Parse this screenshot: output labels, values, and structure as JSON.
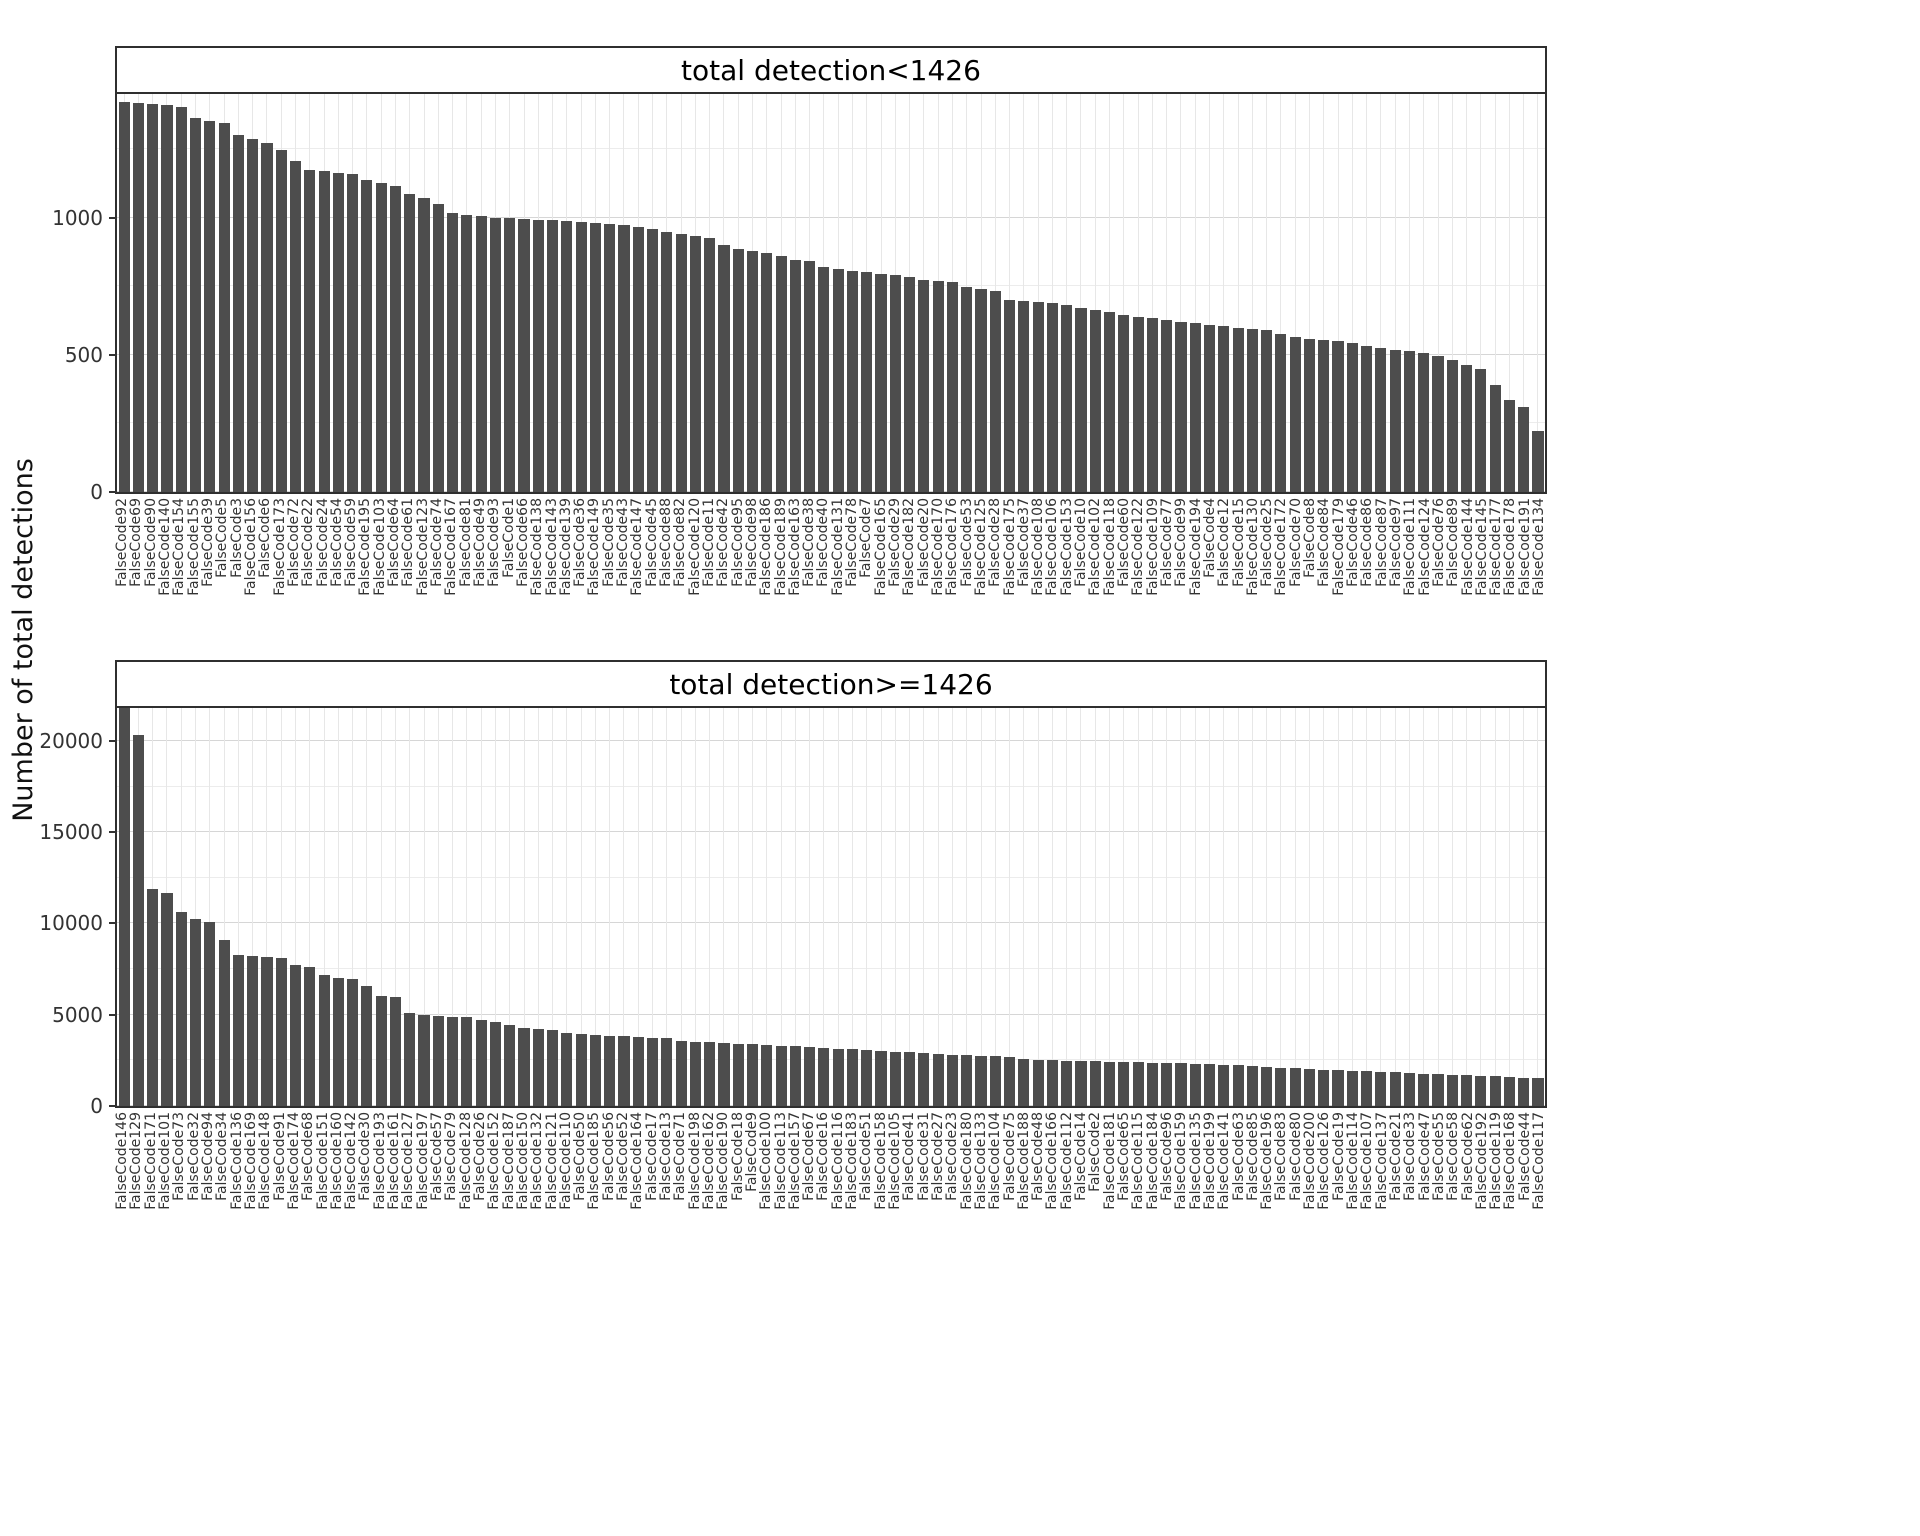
{
  "figure": {
    "y_axis_label": "Number of total detections",
    "background": "#ffffff",
    "bar_color": "#4d4d4d",
    "major_gridline_color": "#d6d6d6",
    "minor_gridline_color": "#ececec",
    "axis_text_color": "#333333"
  },
  "chart_data": [
    {
      "type": "bar",
      "title": "total detection<1426",
      "xlabel": "",
      "ylabel": "Number of total detections",
      "ylim": [
        0,
        1450
      ],
      "yticks": [
        0,
        500,
        1000
      ],
      "minor_yticks": [
        250,
        750,
        1250
      ],
      "legend": "none",
      "grid": "on",
      "categories": [
        "FalseCode92",
        "FalseCode69",
        "FalseCode90",
        "FalseCode140",
        "FalseCode154",
        "FalseCode155",
        "FalseCode39",
        "FalseCode5",
        "FalseCode3",
        "FalseCode156",
        "FalseCode6",
        "FalseCode173",
        "FalseCode72",
        "FalseCode22",
        "FalseCode24",
        "FalseCode54",
        "FalseCode59",
        "FalseCode195",
        "FalseCode103",
        "FalseCode64",
        "FalseCode61",
        "FalseCode123",
        "FalseCode74",
        "FalseCode167",
        "FalseCode81",
        "FalseCode49",
        "FalseCode93",
        "FalseCode1",
        "FalseCode66",
        "FalseCode138",
        "FalseCode143",
        "FalseCode139",
        "FalseCode36",
        "FalseCode149",
        "FalseCode35",
        "FalseCode43",
        "FalseCode147",
        "FalseCode45",
        "FalseCode88",
        "FalseCode82",
        "FalseCode120",
        "FalseCode11",
        "FalseCode42",
        "FalseCode95",
        "FalseCode98",
        "FalseCode186",
        "FalseCode189",
        "FalseCode163",
        "FalseCode38",
        "FalseCode40",
        "FalseCode131",
        "FalseCode78",
        "FalseCode7",
        "FalseCode165",
        "FalseCode29",
        "FalseCode182",
        "FalseCode20",
        "FalseCode170",
        "FalseCode176",
        "FalseCode53",
        "FalseCode125",
        "FalseCode28",
        "FalseCode175",
        "FalseCode37",
        "FalseCode108",
        "FalseCode106",
        "FalseCode153",
        "FalseCode10",
        "FalseCode102",
        "FalseCode118",
        "FalseCode60",
        "FalseCode122",
        "FalseCode109",
        "FalseCode77",
        "FalseCode99",
        "FalseCode194",
        "FalseCode4",
        "FalseCode12",
        "FalseCode15",
        "FalseCode130",
        "FalseCode25",
        "FalseCode172",
        "FalseCode70",
        "FalseCode8",
        "FalseCode84",
        "FalseCode179",
        "FalseCode46",
        "FalseCode86",
        "FalseCode87",
        "FalseCode97",
        "FalseCode111",
        "FalseCode124",
        "FalseCode76",
        "FalseCode89",
        "FalseCode144",
        "FalseCode145",
        "FalseCode177",
        "FalseCode178",
        "FalseCode191",
        "FalseCode134"
      ],
      "values": [
        1421,
        1418,
        1413,
        1409,
        1404,
        1362,
        1351,
        1344,
        1301,
        1286,
        1271,
        1246,
        1206,
        1172,
        1168,
        1164,
        1158,
        1136,
        1127,
        1114,
        1086,
        1071,
        1051,
        1016,
        1008,
        1004,
        1000,
        997,
        995,
        992,
        990,
        987,
        984,
        981,
        977,
        971,
        964,
        957,
        949,
        941,
        934,
        927,
        901,
        887,
        877,
        871,
        861,
        847,
        841,
        821,
        811,
        806,
        800,
        795,
        789,
        784,
        774,
        769,
        764,
        747,
        741,
        731,
        701,
        696,
        693,
        689,
        681,
        671,
        664,
        655,
        645,
        639,
        634,
        625,
        619,
        614,
        609,
        604,
        599,
        594,
        589,
        575,
        565,
        559,
        554,
        549,
        544,
        531,
        525,
        519,
        514,
        505,
        497,
        482,
        461,
        447,
        391,
        334,
        311,
        224
      ]
    },
    {
      "type": "bar",
      "title": "total detection>=1426",
      "xlabel": "",
      "ylabel": "Number of total detections",
      "ylim": [
        0,
        21800
      ],
      "yticks": [
        0,
        5000,
        10000,
        15000,
        20000
      ],
      "minor_yticks": [
        2500,
        7500,
        12500,
        17500
      ],
      "legend": "none",
      "grid": "on",
      "categories": [
        "FalseCode146",
        "FalseCode129",
        "FalseCode171",
        "FalseCode101",
        "FalseCode73",
        "FalseCode32",
        "FalseCode94",
        "FalseCode34",
        "FalseCode136",
        "FalseCode169",
        "FalseCode148",
        "FalseCode91",
        "FalseCode174",
        "FalseCode68",
        "FalseCode151",
        "FalseCode160",
        "FalseCode142",
        "FalseCode30",
        "FalseCode193",
        "FalseCode161",
        "FalseCode127",
        "FalseCode197",
        "FalseCode57",
        "FalseCode79",
        "FalseCode128",
        "FalseCode26",
        "FalseCode152",
        "FalseCode187",
        "FalseCode150",
        "FalseCode132",
        "FalseCode121",
        "FalseCode110",
        "FalseCode50",
        "FalseCode185",
        "FalseCode56",
        "FalseCode52",
        "FalseCode164",
        "FalseCode17",
        "FalseCode13",
        "FalseCode71",
        "FalseCode198",
        "FalseCode162",
        "FalseCode190",
        "FalseCode18",
        "FalseCode9",
        "FalseCode100",
        "FalseCode113",
        "FalseCode157",
        "FalseCode67",
        "FalseCode16",
        "FalseCode116",
        "FalseCode183",
        "FalseCode51",
        "FalseCode158",
        "FalseCode105",
        "FalseCode41",
        "FalseCode31",
        "FalseCode27",
        "FalseCode23",
        "FalseCode180",
        "FalseCode133",
        "FalseCode104",
        "FalseCode75",
        "FalseCode188",
        "FalseCode48",
        "FalseCode166",
        "FalseCode112",
        "FalseCode14",
        "FalseCode2",
        "FalseCode181",
        "FalseCode65",
        "FalseCode115",
        "FalseCode184",
        "FalseCode96",
        "FalseCode159",
        "FalseCode135",
        "FalseCode199",
        "FalseCode141",
        "FalseCode63",
        "FalseCode85",
        "FalseCode196",
        "FalseCode83",
        "FalseCode80",
        "FalseCode200",
        "FalseCode126",
        "FalseCode19",
        "FalseCode114",
        "FalseCode107",
        "FalseCode137",
        "FalseCode21",
        "FalseCode33",
        "FalseCode47",
        "FalseCode55",
        "FalseCode58",
        "FalseCode62",
        "FalseCode192",
        "FalseCode119",
        "FalseCode168",
        "FalseCode44",
        "FalseCode117"
      ],
      "values": [
        21800,
        20300,
        11900,
        11650,
        10600,
        10250,
        10100,
        9100,
        8250,
        8200,
        8150,
        8100,
        7700,
        7600,
        7150,
        7000,
        6950,
        6600,
        6050,
        5950,
        5100,
        4980,
        4950,
        4900,
        4850,
        4700,
        4600,
        4450,
        4300,
        4200,
        4150,
        3980,
        3940,
        3900,
        3860,
        3820,
        3780,
        3740,
        3700,
        3560,
        3520,
        3480,
        3440,
        3400,
        3380,
        3340,
        3300,
        3260,
        3220,
        3180,
        3150,
        3100,
        3060,
        3020,
        2980,
        2940,
        2900,
        2860,
        2820,
        2780,
        2750,
        2720,
        2680,
        2560,
        2520,
        2500,
        2480,
        2460,
        2440,
        2420,
        2400,
        2390,
        2380,
        2360,
        2340,
        2320,
        2300,
        2260,
        2220,
        2180,
        2140,
        2100,
        2060,
        2020,
        1990,
        1960,
        1930,
        1900,
        1870,
        1840,
        1810,
        1780,
        1750,
        1720,
        1690,
        1660,
        1630,
        1600,
        1560,
        1520
      ]
    }
  ]
}
